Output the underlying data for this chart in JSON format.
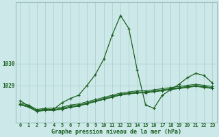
{
  "title": "Graphe pression niveau de la mer (hPa)",
  "bg_color": "#cce8e8",
  "grid_color": "#aacccc",
  "line_color": "#1a6020",
  "xlim": [
    -0.5,
    23.5
  ],
  "ylim": [
    1027.3,
    1032.8
  ],
  "yticks": [
    1029,
    1030
  ],
  "xticks": [
    0,
    1,
    2,
    3,
    4,
    5,
    6,
    7,
    8,
    9,
    10,
    11,
    12,
    13,
    14,
    15,
    16,
    17,
    18,
    19,
    20,
    21,
    22,
    23
  ],
  "flat_series": [
    [
      1028.15,
      1028.05,
      1027.85,
      1027.9,
      1027.9,
      1027.95,
      1028.05,
      1028.1,
      1028.2,
      1028.3,
      1028.4,
      1028.5,
      1028.6,
      1028.65,
      1028.7,
      1028.7,
      1028.75,
      1028.8,
      1028.85,
      1028.9,
      1028.95,
      1029.0,
      1028.95,
      1028.9
    ],
    [
      1028.1,
      1028.0,
      1027.8,
      1027.85,
      1027.85,
      1027.9,
      1027.98,
      1028.05,
      1028.15,
      1028.25,
      1028.35,
      1028.45,
      1028.55,
      1028.6,
      1028.65,
      1028.65,
      1028.7,
      1028.75,
      1028.8,
      1028.85,
      1028.9,
      1028.95,
      1028.9,
      1028.85
    ],
    [
      1028.2,
      1028.1,
      1027.9,
      1027.95,
      1027.95,
      1028.0,
      1028.1,
      1028.15,
      1028.25,
      1028.35,
      1028.45,
      1028.55,
      1028.65,
      1028.7,
      1028.75,
      1028.75,
      1028.8,
      1028.85,
      1028.9,
      1028.95,
      1029.0,
      1029.05,
      1029.0,
      1028.95
    ],
    [
      1028.12,
      1028.02,
      1027.82,
      1027.87,
      1027.87,
      1027.92,
      1028.0,
      1028.07,
      1028.17,
      1028.27,
      1028.37,
      1028.47,
      1028.57,
      1028.62,
      1028.67,
      1028.67,
      1028.72,
      1028.77,
      1028.82,
      1028.87,
      1028.92,
      1028.97,
      1028.92,
      1028.87
    ]
  ],
  "main_series": [
    1028.3,
    1028.05,
    1027.85,
    1027.9,
    1027.9,
    1028.2,
    1028.4,
    1028.55,
    1029.0,
    1029.5,
    1030.2,
    1031.3,
    1032.2,
    1031.6,
    1029.7,
    1028.1,
    1027.95,
    1028.55,
    1028.8,
    1029.05,
    1029.35,
    1029.55,
    1029.45,
    1029.1
  ]
}
